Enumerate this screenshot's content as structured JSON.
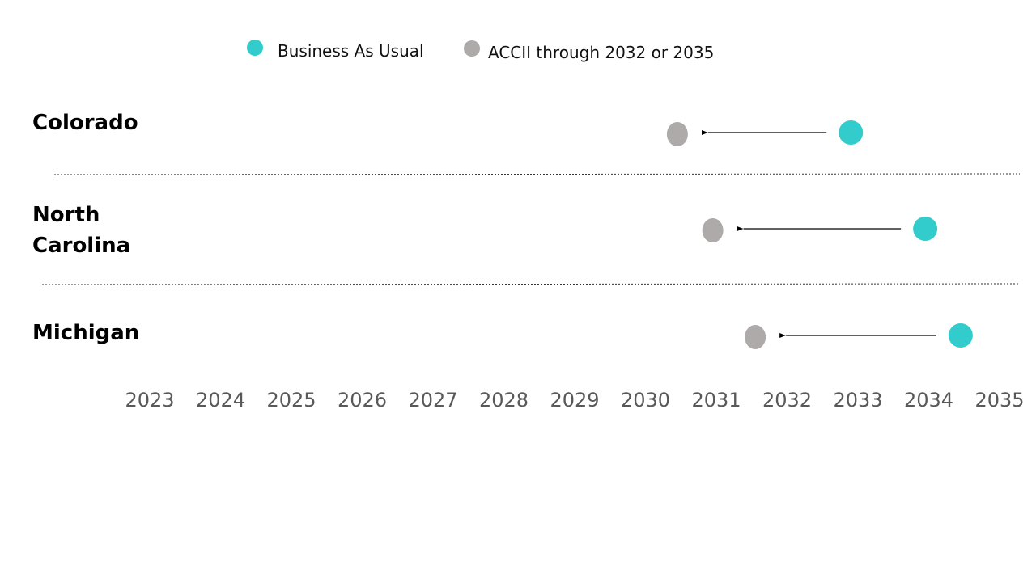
{
  "chart_data": {
    "type": "scatter",
    "title": "",
    "xlabel": "",
    "ylabel": "",
    "xlim": [
      2023,
      2035
    ],
    "x_ticks": [
      "2023",
      "2024",
      "2025",
      "2026",
      "2027",
      "2028",
      "2029",
      "2030",
      "2031",
      "2032",
      "2033",
      "2034",
      "2035"
    ],
    "categories": [
      {
        "label_lines": [
          "Colorado"
        ]
      },
      {
        "label_lines": [
          "North",
          "Carolina"
        ]
      },
      {
        "label_lines": [
          "Michigan"
        ]
      }
    ],
    "series": [
      {
        "name": "Business As Usual",
        "color": "#33CCCC",
        "values": [
          2032.9,
          2033.95,
          2034.45
        ]
      },
      {
        "name": "ACCII through 2032 or 2035",
        "color": "#AEAAAA",
        "values": [
          2030.45,
          2030.95,
          2031.55
        ]
      }
    ],
    "annotations": "arrows from Business As Usual point toward ACCII point for each state",
    "legend_position": "top",
    "grid": false
  }
}
